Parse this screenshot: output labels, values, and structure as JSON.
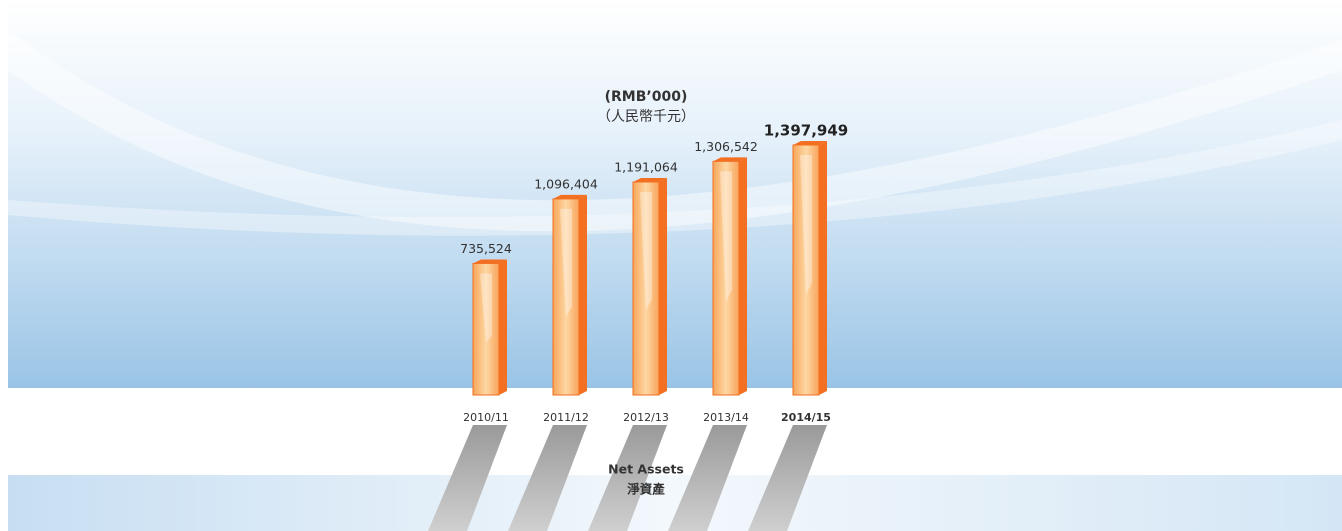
{
  "chart_data": {
    "type": "bar",
    "title": "(RMB’000)",
    "subtitle": "（人民幣千元）",
    "categories": [
      "2010/11",
      "2011/12",
      "2012/13",
      "2013/14",
      "2014/15"
    ],
    "values": [
      735524,
      1096404,
      1191064,
      1306542,
      1397949
    ],
    "value_labels": [
      "735,524",
      "1,096,404",
      "1,191,064",
      "1,306,542",
      "1,397,949"
    ],
    "color": "#f36f21",
    "caption": "Net Assets",
    "caption_zh": "淨資產"
  }
}
